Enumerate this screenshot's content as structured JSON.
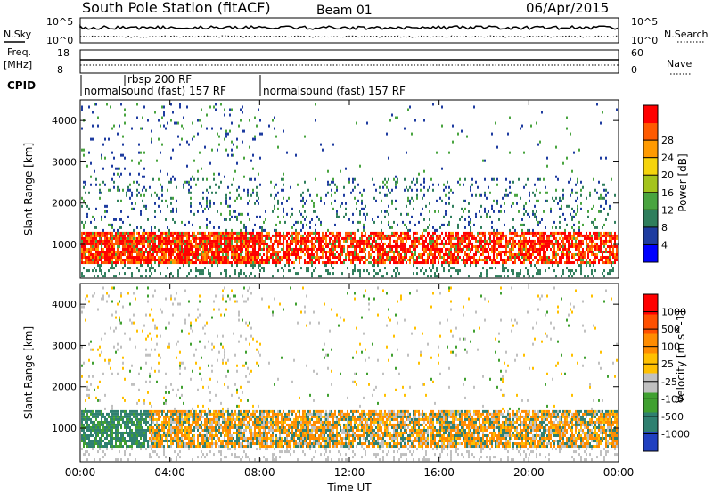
{
  "header": {
    "station_title": "South Pole Station (fitACF)",
    "beam": "Beam 01",
    "date": "06/Apr/2015"
  },
  "top_panels": {
    "nsky_label": "N.Sky",
    "nsearch_label": "N.Search",
    "noise_left_ticks": [
      "10^5",
      "10^0"
    ],
    "noise_right_ticks": [
      "10^5",
      "10^0"
    ],
    "freq_label": "Freq.",
    "freq_unit": "[MHz]",
    "freq_ticks": [
      "18",
      "8"
    ],
    "nave_label": "Nave",
    "nave_ticks": [
      "60",
      "0"
    ],
    "cpid_label": "CPID",
    "cpid_segments": [
      {
        "label": "normalsound (fast) 157 RF",
        "start_hour": 0,
        "end_hour": 8
      },
      {
        "label": "rbsp 200 RF",
        "start_hour": 1.75,
        "end_hour": 2.0
      },
      {
        "label": "normalsound (fast) 157 RF",
        "start_hour": 8,
        "end_hour": 24
      }
    ]
  },
  "chart_data": [
    {
      "type": "heatmap",
      "title": "",
      "xlabel": "Time UT",
      "ylabel": "Slant Range [km]",
      "xlim": [
        0,
        24
      ],
      "ylim": [
        180,
        4500
      ],
      "x_tick_labels": [
        "00:00",
        "04:00",
        "08:00",
        "12:00",
        "16:00",
        "20:00",
        "00:00"
      ],
      "y_tick_labels": [
        "1000",
        "2000",
        "3000",
        "4000"
      ],
      "colorbar": {
        "label": "Power [dB]",
        "ticks": [
          "4",
          "8",
          "12",
          "16",
          "20",
          "24",
          "28"
        ],
        "colors": [
          "#0000ff",
          "#1e3ca0",
          "#2f7e5c",
          "#49a43f",
          "#a4c41c",
          "#f5d40c",
          "#ff9a00",
          "#ff5a00",
          "#ff0000"
        ]
      },
      "scatter_bands": [
        {
          "range_km": [
            500,
            1300
          ],
          "value": "20-30 dB",
          "note": "dense main band"
        },
        {
          "range_km": [
            1300,
            2600
          ],
          "value": "8-16 dB"
        },
        {
          "range_km": [
            2600,
            4400
          ],
          "value": "4-12 dB",
          "note": "sparse, mostly 00:00-08:00"
        }
      ]
    },
    {
      "type": "heatmap",
      "title": "",
      "xlabel": "Time UT",
      "ylabel": "Slant Range [km]",
      "xlim": [
        0,
        24
      ],
      "ylim": [
        180,
        4500
      ],
      "x_tick_labels": [
        "00:00",
        "04:00",
        "08:00",
        "12:00",
        "16:00",
        "20:00",
        "00:00"
      ],
      "y_tick_labels": [
        "1000",
        "2000",
        "3000",
        "4000"
      ],
      "colorbar": {
        "label": "Velocity [m s^-1]",
        "ticks": [
          "1000",
          "500",
          "100",
          "25",
          "-25",
          "-100",
          "-500",
          "-1000"
        ],
        "colors": [
          "#2040c0",
          "#2f8070",
          "#40a030",
          "#c0c0c0",
          "#ffc000",
          "#ff8c00",
          "#ff5000",
          "#ff0000"
        ]
      },
      "scatter_bands": [
        {
          "range_km": [
            500,
            1400
          ],
          "value": "-500 to 500 m/s",
          "note": "mixed green/orange"
        },
        {
          "range_km": [
            1400,
            4400
          ],
          "value": "-100 to 100 m/s",
          "note": "sparse grey/orange"
        }
      ]
    }
  ]
}
